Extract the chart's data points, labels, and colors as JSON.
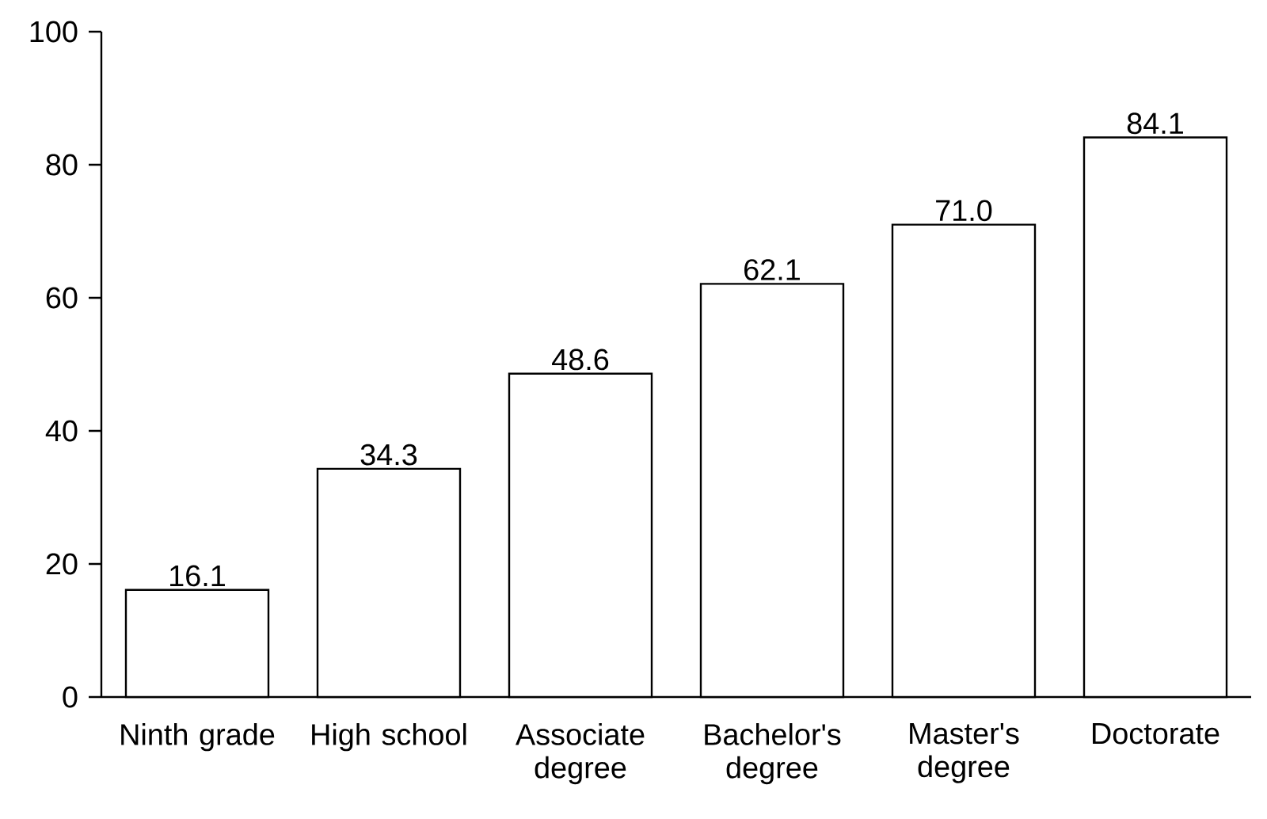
{
  "chart_data": {
    "type": "bar",
    "categories": [
      "Ninth grade",
      "High school",
      "Associate degree",
      "Bachelor's degree",
      "Master's degree",
      "Doctorate"
    ],
    "values": [
      16.1,
      34.3,
      48.6,
      62.1,
      71.0,
      84.1
    ],
    "value_labels": [
      "16.1",
      "34.3",
      "48.6",
      "62.1",
      "71.0",
      "84.1"
    ],
    "color": "#ffffff",
    "ylim": [
      0,
      100
    ],
    "yticks": [
      0,
      20,
      40,
      60,
      80,
      100
    ],
    "grid": false
  }
}
